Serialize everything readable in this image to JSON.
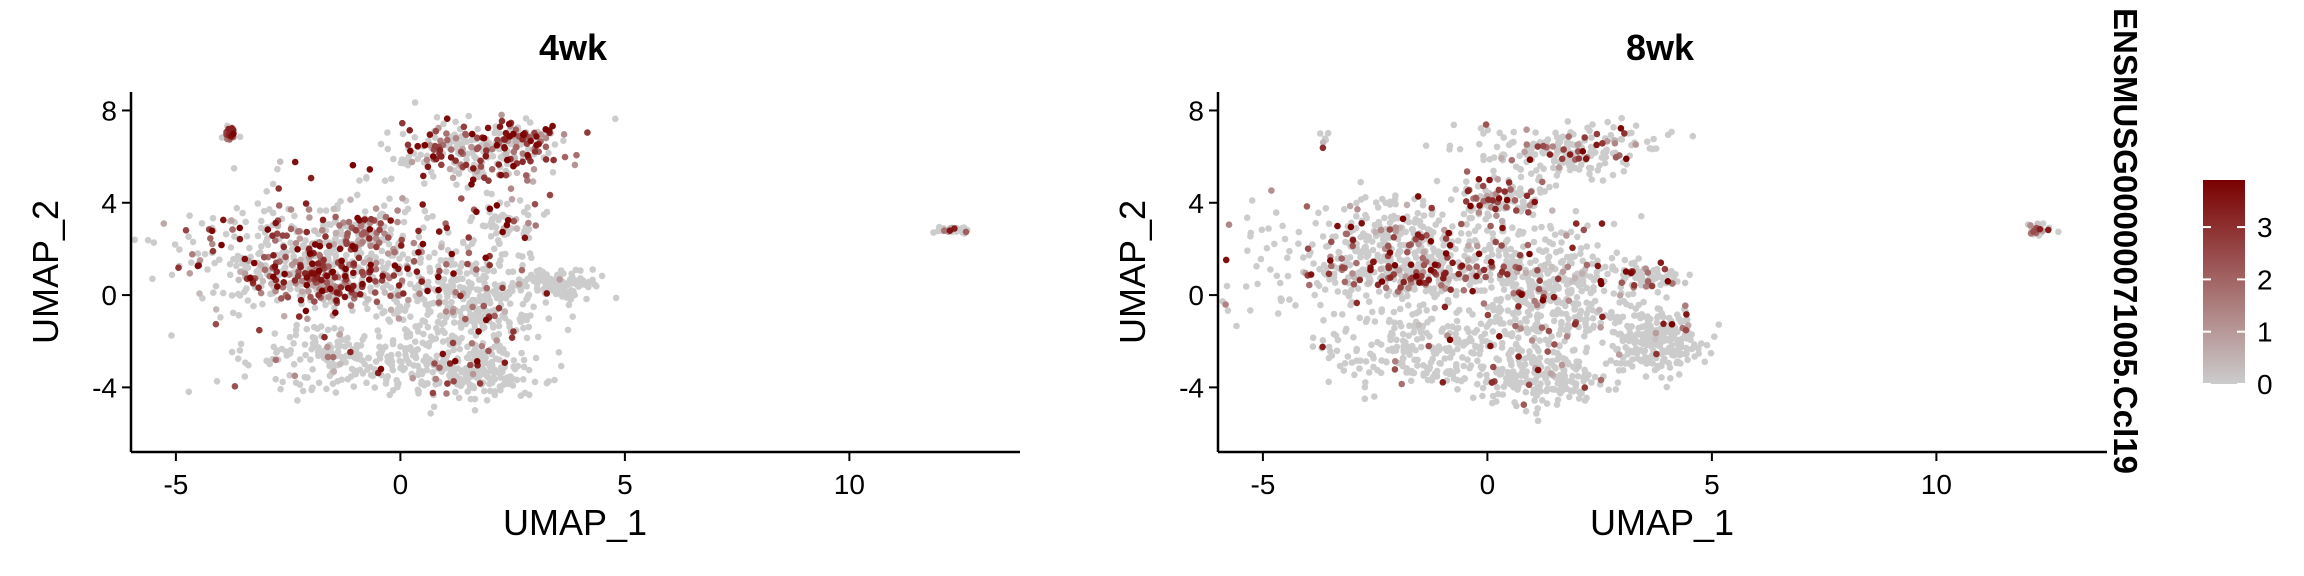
{
  "chart_data": [
    {
      "type": "scatter",
      "title": "4wk",
      "xlabel": "UMAP_1",
      "ylabel": "UMAP_2",
      "xlim": [
        -6,
        13.8
      ],
      "ylim": [
        -6.8,
        8.8
      ],
      "xticks": [
        -5,
        0,
        5,
        10
      ],
      "yticks": [
        8,
        4,
        0,
        -4
      ],
      "grid": false,
      "point_color_low": "#cccccc",
      "point_color_high": "#7a0000",
      "clusters": [
        {
          "cx": -3.8,
          "cy": 7.0,
          "rx": 0.15,
          "ry": 0.35,
          "n": 28,
          "expr": 0.6
        },
        {
          "cx": -1.7,
          "cy": 1.8,
          "rx": 2.8,
          "ry": 2.4,
          "n": 520,
          "expr": 0.35
        },
        {
          "cx": -1.6,
          "cy": 0.7,
          "rx": 1.7,
          "ry": 0.9,
          "n": 190,
          "expr": 0.7
        },
        {
          "cx": -0.9,
          "cy": 2.6,
          "rx": 0.6,
          "ry": 0.9,
          "n": 60,
          "expr": 0.7
        },
        {
          "cx": -1.0,
          "cy": -2.8,
          "rx": 2.1,
          "ry": 1.2,
          "n": 230,
          "expr": 0.05
        },
        {
          "cx": 1.5,
          "cy": -0.4,
          "rx": 1.6,
          "ry": 2.3,
          "n": 380,
          "expr": 0.12
        },
        {
          "cx": 1.6,
          "cy": -3.4,
          "rx": 1.3,
          "ry": 1.0,
          "n": 180,
          "expr": 0.08
        },
        {
          "cx": 1.6,
          "cy": 6.2,
          "rx": 1.6,
          "ry": 1.2,
          "n": 260,
          "expr": 0.45
        },
        {
          "cx": 2.7,
          "cy": 6.8,
          "rx": 0.6,
          "ry": 0.5,
          "n": 70,
          "expr": 0.6
        },
        {
          "cx": 3.5,
          "cy": 0.5,
          "rx": 0.9,
          "ry": 0.5,
          "n": 110,
          "expr": 0.02
        },
        {
          "cx": 2.4,
          "cy": 3.2,
          "rx": 0.7,
          "ry": 1.0,
          "n": 60,
          "expr": 0.3
        },
        {
          "cx": 12.3,
          "cy": 2.8,
          "rx": 0.25,
          "ry": 0.2,
          "n": 32,
          "expr": 0.35
        }
      ]
    },
    {
      "type": "scatter",
      "title": "8wk",
      "xlabel": "UMAP_1",
      "ylabel": "UMAP_2",
      "xlim": [
        -6,
        13.8
      ],
      "ylim": [
        -6.8,
        8.8
      ],
      "xticks": [
        -5,
        0,
        5,
        10
      ],
      "yticks": [
        8,
        4,
        0,
        -4
      ],
      "grid": false,
      "point_color_low": "#cccccc",
      "point_color_high": "#7a0000",
      "clusters": [
        {
          "cx": -3.6,
          "cy": 6.8,
          "rx": 0.15,
          "ry": 0.35,
          "n": 6,
          "expr": 0.5
        },
        {
          "cx": -1.8,
          "cy": 1.6,
          "rx": 2.8,
          "ry": 2.3,
          "n": 560,
          "expr": 0.18
        },
        {
          "cx": -1.4,
          "cy": 0.8,
          "rx": 1.6,
          "ry": 0.6,
          "n": 110,
          "expr": 0.55
        },
        {
          "cx": 0.3,
          "cy": 4.2,
          "rx": 0.9,
          "ry": 0.8,
          "n": 100,
          "expr": 0.45
        },
        {
          "cx": -1.2,
          "cy": -2.4,
          "rx": 2.2,
          "ry": 1.5,
          "n": 240,
          "expr": 0.03
        },
        {
          "cx": 1.3,
          "cy": 0.2,
          "rx": 1.5,
          "ry": 2.4,
          "n": 380,
          "expr": 0.15
        },
        {
          "cx": 1.2,
          "cy": -3.6,
          "rx": 1.3,
          "ry": 1.2,
          "n": 190,
          "expr": 0.1
        },
        {
          "cx": 1.8,
          "cy": 6.3,
          "rx": 1.8,
          "ry": 1.0,
          "n": 200,
          "expr": 0.2
        },
        {
          "cx": 3.7,
          "cy": -2.0,
          "rx": 0.9,
          "ry": 1.3,
          "n": 260,
          "expr": 0.04
        },
        {
          "cx": 3.6,
          "cy": 0.7,
          "rx": 0.7,
          "ry": 0.5,
          "n": 70,
          "expr": 0.25
        },
        {
          "cx": 12.3,
          "cy": 2.8,
          "rx": 0.25,
          "ry": 0.2,
          "n": 30,
          "expr": 0.35
        }
      ]
    }
  ],
  "legend": {
    "title": "ENSMUSG00000071005.Ccl19",
    "ticks": [
      "3",
      "2",
      "1",
      "0"
    ],
    "tick_values": [
      3,
      2,
      1,
      0
    ],
    "range": [
      0,
      3.9
    ],
    "color_low": "#cccccc",
    "color_high": "#7a0000"
  }
}
